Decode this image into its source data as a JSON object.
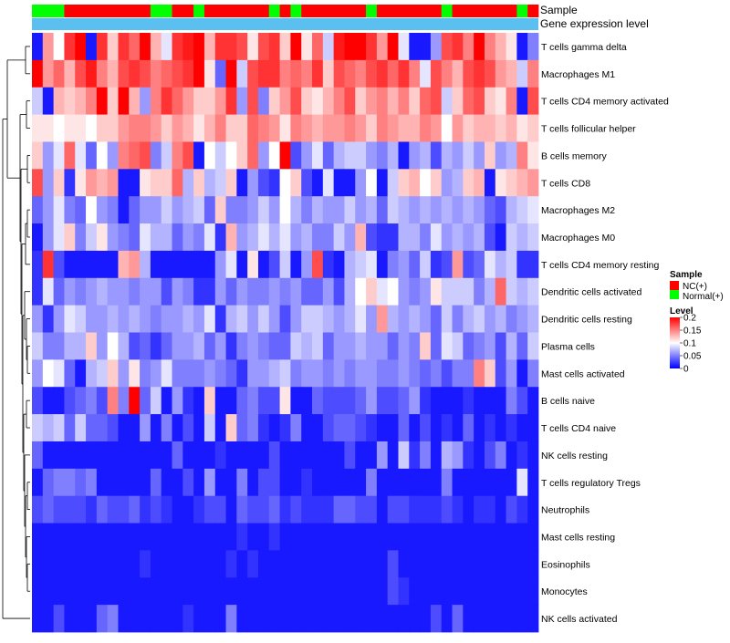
{
  "chart_data": {
    "type": "heatmap",
    "title": "",
    "col_annotations": [
      {
        "label": "Sample"
      },
      {
        "label": "Gene expression level"
      }
    ],
    "legend_sample": {
      "title": "Sample",
      "entries": [
        {
          "label": "NC(+)",
          "color": "#ff0000"
        },
        {
          "label": "Normal(+)",
          "color": "#00ff00"
        }
      ]
    },
    "legend_level": {
      "title": "Level",
      "ticks": [
        "0.2",
        "0.15",
        "0.1",
        "0.05",
        "0"
      ],
      "tick_values": [
        0.2,
        0.15,
        0.1,
        0.05,
        0
      ],
      "range": [
        0,
        0.2
      ]
    },
    "colors": {
      "low": "#0000ff",
      "mid": "#ffffff",
      "high": "#ff0000",
      "level_annot": "#5bc0f0"
    },
    "rows": [
      "T cells gamma delta",
      "Macrophages M1",
      "T cells CD4 memory activated",
      "T cells follicular helper",
      "B cells memory",
      "T cells CD8",
      "Macrophages M2",
      "Macrophages M0",
      "T cells CD4 memory resting",
      "Dendritic cells activated",
      "Dendritic cells resting",
      "Plasma cells",
      "Mast cells activated",
      "B cells naive",
      "T cells CD4 naive",
      "NK cells resting",
      "T cells regulatory  Tregs",
      "Neutrophils",
      "Mast cells resting",
      "Eosinophils",
      "Monocytes",
      "NK cells activated"
    ],
    "sample_groups": [
      "N",
      "N",
      "N",
      "NC",
      "NC",
      "NC",
      "NC",
      "NC",
      "NC",
      "NC",
      "NC",
      "N",
      "N",
      "NC",
      "NC",
      "N",
      "NC",
      "NC",
      "NC",
      "NC",
      "NC",
      "NC",
      "N",
      "NC",
      "N",
      "NC",
      "NC",
      "NC",
      "NC",
      "NC",
      "NC",
      "N",
      "NC",
      "NC",
      "NC",
      "NC",
      "NC",
      "NC",
      "N",
      "NC",
      "NC",
      "NC",
      "NC",
      "NC",
      "NC",
      "N",
      "NC"
    ],
    "values": [
      [
        0.01,
        0.14,
        0.1,
        0.18,
        0.2,
        0.01,
        0.18,
        0.12,
        0.18,
        0.16,
        0.2,
        0.13,
        0.09,
        0.18,
        0.19,
        0.2,
        0.13,
        0.18,
        0.18,
        0.17,
        0.11,
        0.17,
        0.18,
        0.12,
        0.2,
        0.11,
        0.16,
        0.08,
        0.19,
        0.2,
        0.2,
        0.18,
        0.14,
        0.2,
        0.09,
        0.01,
        0.01,
        0.06,
        0.17,
        0.18,
        0.15,
        0.2,
        0.15,
        0.13,
        0.11,
        0.01,
        0.05
      ],
      [
        0.2,
        0.14,
        0.16,
        0.13,
        0.17,
        0.19,
        0.15,
        0.13,
        0.17,
        0.18,
        0.17,
        0.15,
        0.16,
        0.17,
        0.18,
        0.2,
        0.11,
        0.04,
        0.2,
        0.08,
        0.17,
        0.18,
        0.18,
        0.15,
        0.16,
        0.15,
        0.18,
        0.12,
        0.17,
        0.16,
        0.15,
        0.17,
        0.18,
        0.16,
        0.18,
        0.15,
        0.09,
        0.17,
        0.15,
        0.13,
        0.17,
        0.18,
        0.17,
        0.14,
        0.13,
        0.08,
        0.15
      ],
      [
        0.08,
        0.01,
        0.13,
        0.12,
        0.13,
        0.15,
        0.2,
        0.12,
        0.2,
        0.13,
        0.06,
        0.15,
        0.18,
        0.16,
        0.14,
        0.12,
        0.12,
        0.14,
        0.18,
        0.06,
        0.17,
        0.05,
        0.12,
        0.14,
        0.17,
        0.12,
        0.11,
        0.13,
        0.15,
        0.17,
        0.12,
        0.14,
        0.15,
        0.13,
        0.15,
        0.12,
        0.16,
        0.17,
        0.08,
        0.12,
        0.16,
        0.17,
        0.12,
        0.11,
        0.15,
        0.01,
        0.17
      ],
      [
        0.11,
        0.11,
        0.1,
        0.11,
        0.11,
        0.1,
        0.12,
        0.12,
        0.14,
        0.15,
        0.15,
        0.14,
        0.12,
        0.14,
        0.13,
        0.11,
        0.13,
        0.15,
        0.12,
        0.12,
        0.16,
        0.15,
        0.14,
        0.11,
        0.15,
        0.14,
        0.13,
        0.14,
        0.14,
        0.15,
        0.14,
        0.12,
        0.15,
        0.14,
        0.13,
        0.13,
        0.15,
        0.14,
        0.1,
        0.14,
        0.12,
        0.13,
        0.13,
        0.12,
        0.13,
        0.11,
        0.12
      ],
      [
        0.12,
        0.06,
        0.09,
        0.16,
        0.09,
        0.04,
        0.1,
        0.06,
        0.15,
        0.16,
        0.17,
        0.05,
        0.08,
        0.15,
        0.17,
        0.01,
        0.1,
        0.08,
        0.1,
        0.12,
        0.16,
        0.06,
        0.1,
        0.2,
        0.03,
        0.06,
        0.09,
        0.04,
        0.07,
        0.08,
        0.08,
        0.06,
        0.05,
        0.07,
        0.01,
        0.06,
        0.07,
        0.03,
        0.07,
        0.06,
        0.08,
        0.06,
        0.12,
        0.06,
        0.07,
        0.15,
        0.11
      ],
      [
        0.17,
        0.06,
        0.12,
        0.02,
        0.11,
        0.14,
        0.13,
        0.14,
        0.01,
        0.01,
        0.11,
        0.12,
        0.12,
        0.16,
        0.07,
        0.12,
        0.07,
        0.08,
        0.12,
        0.01,
        0.06,
        0.03,
        0.02,
        0.1,
        0.12,
        0.03,
        0.01,
        0.09,
        0.01,
        0.01,
        0.06,
        0.1,
        0.01,
        0.08,
        0.12,
        0.13,
        0.1,
        0.12,
        0.06,
        0.07,
        0.12,
        0.13,
        0.01,
        0.11,
        0.12,
        0.13,
        0.14
      ],
      [
        0.04,
        0.06,
        0.09,
        0.05,
        0.04,
        0.1,
        0.06,
        0.05,
        0.01,
        0.04,
        0.06,
        0.06,
        0.08,
        0.06,
        0.07,
        0.08,
        0.04,
        0.12,
        0.05,
        0.05,
        0.06,
        0.08,
        0.06,
        0.1,
        0.07,
        0.05,
        0.07,
        0.06,
        0.06,
        0.08,
        0.06,
        0.07,
        0.04,
        0.08,
        0.07,
        0.06,
        0.07,
        0.06,
        0.07,
        0.06,
        0.07,
        0.06,
        0.04,
        0.03,
        0.07,
        0.08,
        0.09
      ],
      [
        0.01,
        0.06,
        0.09,
        0.12,
        0.05,
        0.08,
        0.11,
        0.06,
        0.05,
        0.04,
        0.09,
        0.07,
        0.07,
        0.04,
        0.06,
        0.05,
        0.09,
        0.02,
        0.13,
        0.06,
        0.07,
        0.09,
        0.07,
        0.09,
        0.06,
        0.07,
        0.05,
        0.05,
        0.08,
        0.06,
        0.13,
        0.03,
        0.02,
        0.02,
        0.07,
        0.07,
        0.05,
        0.09,
        0.06,
        0.07,
        0.06,
        0.07,
        0.03,
        0.01,
        0.08,
        0.07,
        0.08
      ],
      [
        0.02,
        0.18,
        0.03,
        0.01,
        0.01,
        0.01,
        0.01,
        0.01,
        0.13,
        0.14,
        0.07,
        0.01,
        0.01,
        0.01,
        0.01,
        0.01,
        0.01,
        0.06,
        0.09,
        0.01,
        0.11,
        0.01,
        0.03,
        0.08,
        0.01,
        0.06,
        0.17,
        0.02,
        0.01,
        0.07,
        0.08,
        0.09,
        0.01,
        0.05,
        0.06,
        0.04,
        0.08,
        0.02,
        0.03,
        0.14,
        0.03,
        0.04,
        0.09,
        0.07,
        0.08,
        0.02,
        0.02
      ],
      [
        0.02,
        0.09,
        0.04,
        0.06,
        0.05,
        0.06,
        0.07,
        0.06,
        0.06,
        0.05,
        0.06,
        0.06,
        0.03,
        0.06,
        0.05,
        0.02,
        0.02,
        0.06,
        0.04,
        0.06,
        0.05,
        0.05,
        0.06,
        0.05,
        0.06,
        0.04,
        0.04,
        0.06,
        0.03,
        0.07,
        0.1,
        0.12,
        0.09,
        0.1,
        0.06,
        0.05,
        0.06,
        0.11,
        0.08,
        0.08,
        0.08,
        0.05,
        0.07,
        0.16,
        0.08,
        0.07,
        0.08
      ],
      [
        0.06,
        0.02,
        0.06,
        0.09,
        0.08,
        0.06,
        0.06,
        0.07,
        0.06,
        0.07,
        0.06,
        0.05,
        0.06,
        0.06,
        0.07,
        0.06,
        0.09,
        0.02,
        0.07,
        0.08,
        0.06,
        0.08,
        0.06,
        0.03,
        0.06,
        0.08,
        0.08,
        0.07,
        0.06,
        0.07,
        0.09,
        0.06,
        0.14,
        0.07,
        0.06,
        0.07,
        0.06,
        0.04,
        0.08,
        0.05,
        0.07,
        0.08,
        0.06,
        0.07,
        0.05,
        0.06,
        0.07
      ],
      [
        0.08,
        0.05,
        0.05,
        0.07,
        0.07,
        0.12,
        0.06,
        0.1,
        0.07,
        0.03,
        0.04,
        0.02,
        0.04,
        0.06,
        0.06,
        0.07,
        0.04,
        0.06,
        0.02,
        0.05,
        0.06,
        0.05,
        0.04,
        0.04,
        0.08,
        0.07,
        0.08,
        0.04,
        0.06,
        0.06,
        0.07,
        0.06,
        0.06,
        0.04,
        0.06,
        0.05,
        0.12,
        0.04,
        0.09,
        0.08,
        0.04,
        0.05,
        0.06,
        0.03,
        0.07,
        0.04,
        0.08
      ],
      [
        0.06,
        0.1,
        0.09,
        0.04,
        0.01,
        0.07,
        0.08,
        0.12,
        0.06,
        0.11,
        0.05,
        0.06,
        0.09,
        0.05,
        0.05,
        0.05,
        0.06,
        0.05,
        0.04,
        0.02,
        0.06,
        0.06,
        0.07,
        0.08,
        0.05,
        0.06,
        0.06,
        0.05,
        0.06,
        0.05,
        0.06,
        0.06,
        0.05,
        0.05,
        0.06,
        0.05,
        0.04,
        0.05,
        0.03,
        0.05,
        0.05,
        0.15,
        0.12,
        0.03,
        0.06,
        0.01,
        0.05
      ],
      [
        0.03,
        0.01,
        0.01,
        0.03,
        0.04,
        0.05,
        0.03,
        0.15,
        0.05,
        0.2,
        0.04,
        0.08,
        0.01,
        0.06,
        0.02,
        0.01,
        0.12,
        0.01,
        0.01,
        0.04,
        0.05,
        0.03,
        0.03,
        0.11,
        0.01,
        0.01,
        0.04,
        0.03,
        0.03,
        0.03,
        0.04,
        0.06,
        0.03,
        0.03,
        0.04,
        0.06,
        0.02,
        0.01,
        0.01,
        0.01,
        0.02,
        0.01,
        0.01,
        0.01,
        0.05,
        0.03,
        0.01
      ],
      [
        0.08,
        0.07,
        0.08,
        0.04,
        0.08,
        0.04,
        0.04,
        0.03,
        0.01,
        0.01,
        0.06,
        0.01,
        0.05,
        0.01,
        0.03,
        0.01,
        0.08,
        0.01,
        0.12,
        0.04,
        0.05,
        0.02,
        0.01,
        0.02,
        0.05,
        0.01,
        0.01,
        0.03,
        0.04,
        0.04,
        0.03,
        0.02,
        0.01,
        0.01,
        0.04,
        0.01,
        0.03,
        0.01,
        0.02,
        0.01,
        0.04,
        0.01,
        0.02,
        0.01,
        0.02,
        0.01,
        0.01
      ],
      [
        0.04,
        0.01,
        0.01,
        0.01,
        0.01,
        0.01,
        0.01,
        0.01,
        0.01,
        0.01,
        0.01,
        0.01,
        0.01,
        0.04,
        0.01,
        0.01,
        0.01,
        0.02,
        0.01,
        0.01,
        0.01,
        0.01,
        0.03,
        0.01,
        0.01,
        0.01,
        0.01,
        0.01,
        0.01,
        0.03,
        0.01,
        0.01,
        0.06,
        0.01,
        0.08,
        0.02,
        0.05,
        0.01,
        0.07,
        0.06,
        0.02,
        0.01,
        0.03,
        0.05,
        0.01,
        0.02,
        0.01
      ],
      [
        0.01,
        0.04,
        0.05,
        0.05,
        0.04,
        0.05,
        0.01,
        0.01,
        0.01,
        0.01,
        0.01,
        0.04,
        0.01,
        0.01,
        0.03,
        0.01,
        0.06,
        0.01,
        0.01,
        0.05,
        0.01,
        0.03,
        0.03,
        0.01,
        0.01,
        0.02,
        0.01,
        0.01,
        0.01,
        0.01,
        0.01,
        0.05,
        0.01,
        0.01,
        0.01,
        0.01,
        0.01,
        0.01,
        0.05,
        0.01,
        0.01,
        0.01,
        0.01,
        0.01,
        0.01,
        0.09,
        0.01
      ],
      [
        0.03,
        0.04,
        0.03,
        0.03,
        0.03,
        0.02,
        0.04,
        0.03,
        0.03,
        0.04,
        0.02,
        0.03,
        0.02,
        0.01,
        0.01,
        0.02,
        0.03,
        0.03,
        0.01,
        0.04,
        0.03,
        0.03,
        0.04,
        0.02,
        0.03,
        0.02,
        0.02,
        0.02,
        0.04,
        0.04,
        0.03,
        0.03,
        0.01,
        0.03,
        0.03,
        0.02,
        0.02,
        0.02,
        0.03,
        0.02,
        0.01,
        0.02,
        0.02,
        0.01,
        0.03,
        0.02,
        0.01
      ],
      [
        0.01,
        0.01,
        0.01,
        0.01,
        0.01,
        0.01,
        0.01,
        0.01,
        0.01,
        0.01,
        0.01,
        0.01,
        0.01,
        0.01,
        0.01,
        0.01,
        0.01,
        0.01,
        0.01,
        0.02,
        0.01,
        0.01,
        0.02,
        0.01,
        0.01,
        0.01,
        0.01,
        0.01,
        0.01,
        0.01,
        0.01,
        0.01,
        0.01,
        0.01,
        0.01,
        0.01,
        0.01,
        0.01,
        0.01,
        0.01,
        0.01,
        0.01,
        0.01,
        0.01,
        0.01,
        0.01,
        0.01
      ],
      [
        0.01,
        0.01,
        0.01,
        0.01,
        0.01,
        0.01,
        0.01,
        0.01,
        0.01,
        0.01,
        0.02,
        0.01,
        0.01,
        0.01,
        0.01,
        0.01,
        0.01,
        0.01,
        0.02,
        0.01,
        0.02,
        0.01,
        0.01,
        0.01,
        0.01,
        0.01,
        0.01,
        0.01,
        0.01,
        0.01,
        0.01,
        0.01,
        0.01,
        0.03,
        0.01,
        0.01,
        0.01,
        0.01,
        0.01,
        0.01,
        0.01,
        0.01,
        0.01,
        0.01,
        0.01,
        0.01,
        0.01
      ],
      [
        0.01,
        0.01,
        0.01,
        0.01,
        0.01,
        0.01,
        0.01,
        0.01,
        0.01,
        0.01,
        0.01,
        0.01,
        0.01,
        0.01,
        0.01,
        0.01,
        0.01,
        0.01,
        0.01,
        0.01,
        0.01,
        0.01,
        0.01,
        0.01,
        0.01,
        0.01,
        0.01,
        0.01,
        0.01,
        0.01,
        0.01,
        0.01,
        0.01,
        0.03,
        0.02,
        0.01,
        0.01,
        0.01,
        0.01,
        0.01,
        0.01,
        0.01,
        0.01,
        0.01,
        0.01,
        0.01,
        0.01
      ],
      [
        0.01,
        0.01,
        0.03,
        0.01,
        0.01,
        0.01,
        0.04,
        0.05,
        0.01,
        0.01,
        0.01,
        0.01,
        0.01,
        0.01,
        0.02,
        0.01,
        0.01,
        0.01,
        0.05,
        0.01,
        0.01,
        0.01,
        0.01,
        0.01,
        0.01,
        0.01,
        0.01,
        0.01,
        0.01,
        0.01,
        0.01,
        0.01,
        0.01,
        0.01,
        0.01,
        0.01,
        0.01,
        0.03,
        0.01,
        0.04,
        0.01,
        0.01,
        0.01,
        0.01,
        0.01,
        0.01,
        0.01
      ]
    ]
  }
}
